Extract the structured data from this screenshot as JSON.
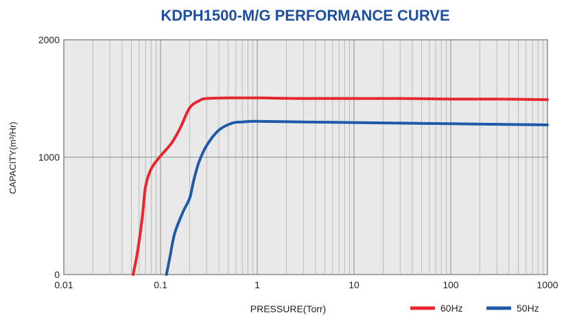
{
  "chart_data": {
    "type": "line",
    "title": "KDPH1500-M/G  PERFORMANCE CURVE",
    "xlabel": "PRESSURE(Torr)",
    "ylabel": "CAPACITY(m³/Hr)",
    "x_scale": "log",
    "xlim": [
      0.01,
      1000
    ],
    "ylim": [
      0,
      2000
    ],
    "x_ticks": [
      "0.01",
      "0.1",
      "1",
      "10",
      "100",
      "1000"
    ],
    "y_ticks": [
      "0",
      "1000",
      "2000"
    ],
    "grid": true,
    "legend_position": "bottom-right",
    "series": [
      {
        "name": "60Hz",
        "color": "#e8262f",
        "points": [
          [
            0.052,
            0
          ],
          [
            0.058,
            200
          ],
          [
            0.065,
            500
          ],
          [
            0.07,
            750
          ],
          [
            0.08,
            900
          ],
          [
            0.1,
            1010
          ],
          [
            0.13,
            1120
          ],
          [
            0.16,
            1250
          ],
          [
            0.2,
            1420
          ],
          [
            0.25,
            1480
          ],
          [
            0.3,
            1500
          ],
          [
            0.5,
            1505
          ],
          [
            1,
            1505
          ],
          [
            3,
            1500
          ],
          [
            10,
            1500
          ],
          [
            30,
            1500
          ],
          [
            100,
            1495
          ],
          [
            300,
            1495
          ],
          [
            1000,
            1490
          ]
        ]
      },
      {
        "name": "50Hz",
        "color": "#1f5aa8",
        "points": [
          [
            0.115,
            0
          ],
          [
            0.125,
            150
          ],
          [
            0.14,
            350
          ],
          [
            0.17,
            530
          ],
          [
            0.2,
            650
          ],
          [
            0.22,
            800
          ],
          [
            0.25,
            960
          ],
          [
            0.3,
            1100
          ],
          [
            0.4,
            1230
          ],
          [
            0.55,
            1290
          ],
          [
            0.7,
            1300
          ],
          [
            1,
            1305
          ],
          [
            3,
            1300
          ],
          [
            10,
            1295
          ],
          [
            30,
            1290
          ],
          [
            100,
            1285
          ],
          [
            300,
            1280
          ],
          [
            1000,
            1275
          ]
        ]
      }
    ]
  },
  "colors": {
    "title": "#1f4f9c",
    "plot_background": "#e9e9e9",
    "grid_minor": "#b9b9b9",
    "grid_major": "#8a8a8a"
  }
}
